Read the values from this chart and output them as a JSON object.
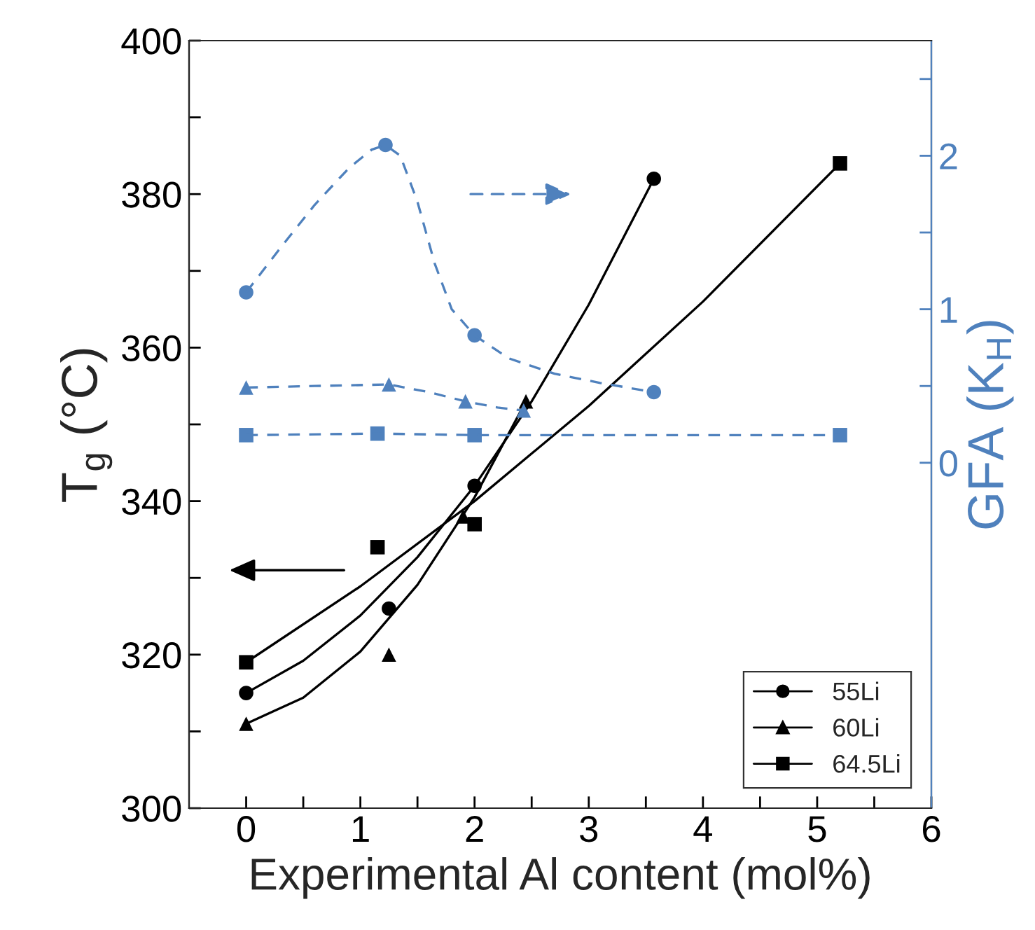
{
  "chart_data": {
    "type": "scatter",
    "xlabel": "Experimental Al content (mol%)",
    "ylabel": "T$_{g}$ (°C)",
    "y2label": "GFA (K$_{H}$)",
    "xlim": [
      -0.5,
      6
    ],
    "xticks": [
      0,
      {
        "value": 0.5,
        "label": null
      },
      1,
      {
        "value": 1.5,
        "label": null
      },
      2,
      {
        "value": 2.5,
        "label": null
      },
      3,
      {
        "value": 3.5,
        "label": null
      },
      4,
      {
        "value": 4.5,
        "label": null
      },
      5,
      {
        "value": 5.5,
        "label": null
      },
      6
    ],
    "ylim": [
      300,
      400
    ],
    "yticks": [
      300,
      {
        "value": 310,
        "label": null
      },
      320,
      {
        "value": 330,
        "label": null
      },
      340,
      {
        "value": 350,
        "label": null
      },
      360,
      {
        "value": 370,
        "label": null
      },
      380,
      {
        "value": 390,
        "label": null
      },
      400
    ],
    "y2lim": [
      -2.25,
      2.75
    ],
    "y2ticks": [
      0,
      {
        "value": 0.5,
        "label": null
      },
      1,
      {
        "value": 1.5,
        "label": null
      },
      2,
      {
        "value": 2.5,
        "label": null
      }
    ],
    "grid": false,
    "legend": "bottom right",
    "series": [
      {
        "name": "55Li",
        "marker": "circle",
        "color": "#000000",
        "x": [
          0,
          1.25,
          2,
          3.57
        ],
        "values": [
          315,
          326,
          342,
          382
        ]
      },
      {
        "name": "60Li",
        "marker": "triangle",
        "color": "#000000",
        "x": [
          0,
          1.25,
          1.9,
          2.45
        ],
        "values": [
          311,
          320,
          338,
          353
        ]
      },
      {
        "name": "64.5Li",
        "marker": "square",
        "color": "#000000",
        "x": [
          0,
          1.15,
          2,
          5.2
        ],
        "values": [
          319,
          334,
          337,
          384
        ]
      },
      {
        "type": "line",
        "line_style": "solid",
        "color": "#000000",
        "x": [
          0,
          0.5,
          1,
          1.5,
          2,
          2.5,
          3,
          3.57
        ],
        "values": [
          315,
          319.2,
          325.1,
          332.7,
          342,
          353,
          365.6,
          382
        ]
      },
      {
        "type": "line",
        "line_style": "solid",
        "color": "#000000",
        "x": [
          0,
          0.5,
          1,
          1.5,
          2,
          2.45
        ],
        "values": [
          311,
          314.4,
          320.4,
          329.1,
          340.5,
          353
        ]
      },
      {
        "type": "line",
        "line_style": "solid",
        "color": "#000000",
        "x": [
          0,
          1,
          2,
          3,
          4,
          5.2
        ],
        "values": [
          319,
          328.9,
          340,
          352.4,
          366,
          384
        ]
      },
      {
        "type": "line",
        "axis": "y2",
        "line_style": "dashed",
        "color": "#4f81bd",
        "x": [
          0,
          0.3,
          0.6,
          0.9,
          1.1,
          1.22,
          1.35,
          1.5,
          1.65,
          1.8,
          2,
          2.3,
          2.7,
          3.1,
          3.57
        ],
        "values": [
          1.11,
          1.4,
          1.68,
          1.92,
          2.04,
          2.07,
          2.0,
          1.7,
          1.3,
          1.0,
          0.83,
          0.68,
          0.58,
          0.52,
          0.46
        ]
      },
      {
        "type": "line",
        "axis": "y2",
        "line_style": "dashed",
        "color": "#4f81bd",
        "x": [
          0,
          0.6,
          1.25,
          1.6,
          1.92,
          2.2,
          2.43
        ],
        "values": [
          0.49,
          0.5,
          0.51,
          0.46,
          0.4,
          0.36,
          0.34
        ]
      },
      {
        "type": "line",
        "axis": "y2",
        "line_style": "dashed",
        "color": "#4f81bd",
        "x": [
          0,
          1.15,
          2,
          5.2
        ],
        "values": [
          0.18,
          0.19,
          0.18,
          0.18
        ]
      },
      {
        "axis": "y2",
        "marker": "circle",
        "color": "#4f81bd",
        "x": [
          0,
          1.22,
          2,
          3.57
        ],
        "values": [
          1.11,
          2.07,
          0.83,
          0.46
        ]
      },
      {
        "axis": "y2",
        "marker": "triangle",
        "color": "#4f81bd",
        "x": [
          0,
          1.25,
          1.92,
          2.43
        ],
        "values": [
          0.49,
          0.51,
          0.4,
          0.34
        ]
      },
      {
        "axis": "y2",
        "marker": "square",
        "color": "#4f81bd",
        "x": [
          0,
          1.15,
          2,
          5.2
        ],
        "values": [
          0.18,
          0.19,
          0.18,
          0.18
        ]
      }
    ]
  }
}
